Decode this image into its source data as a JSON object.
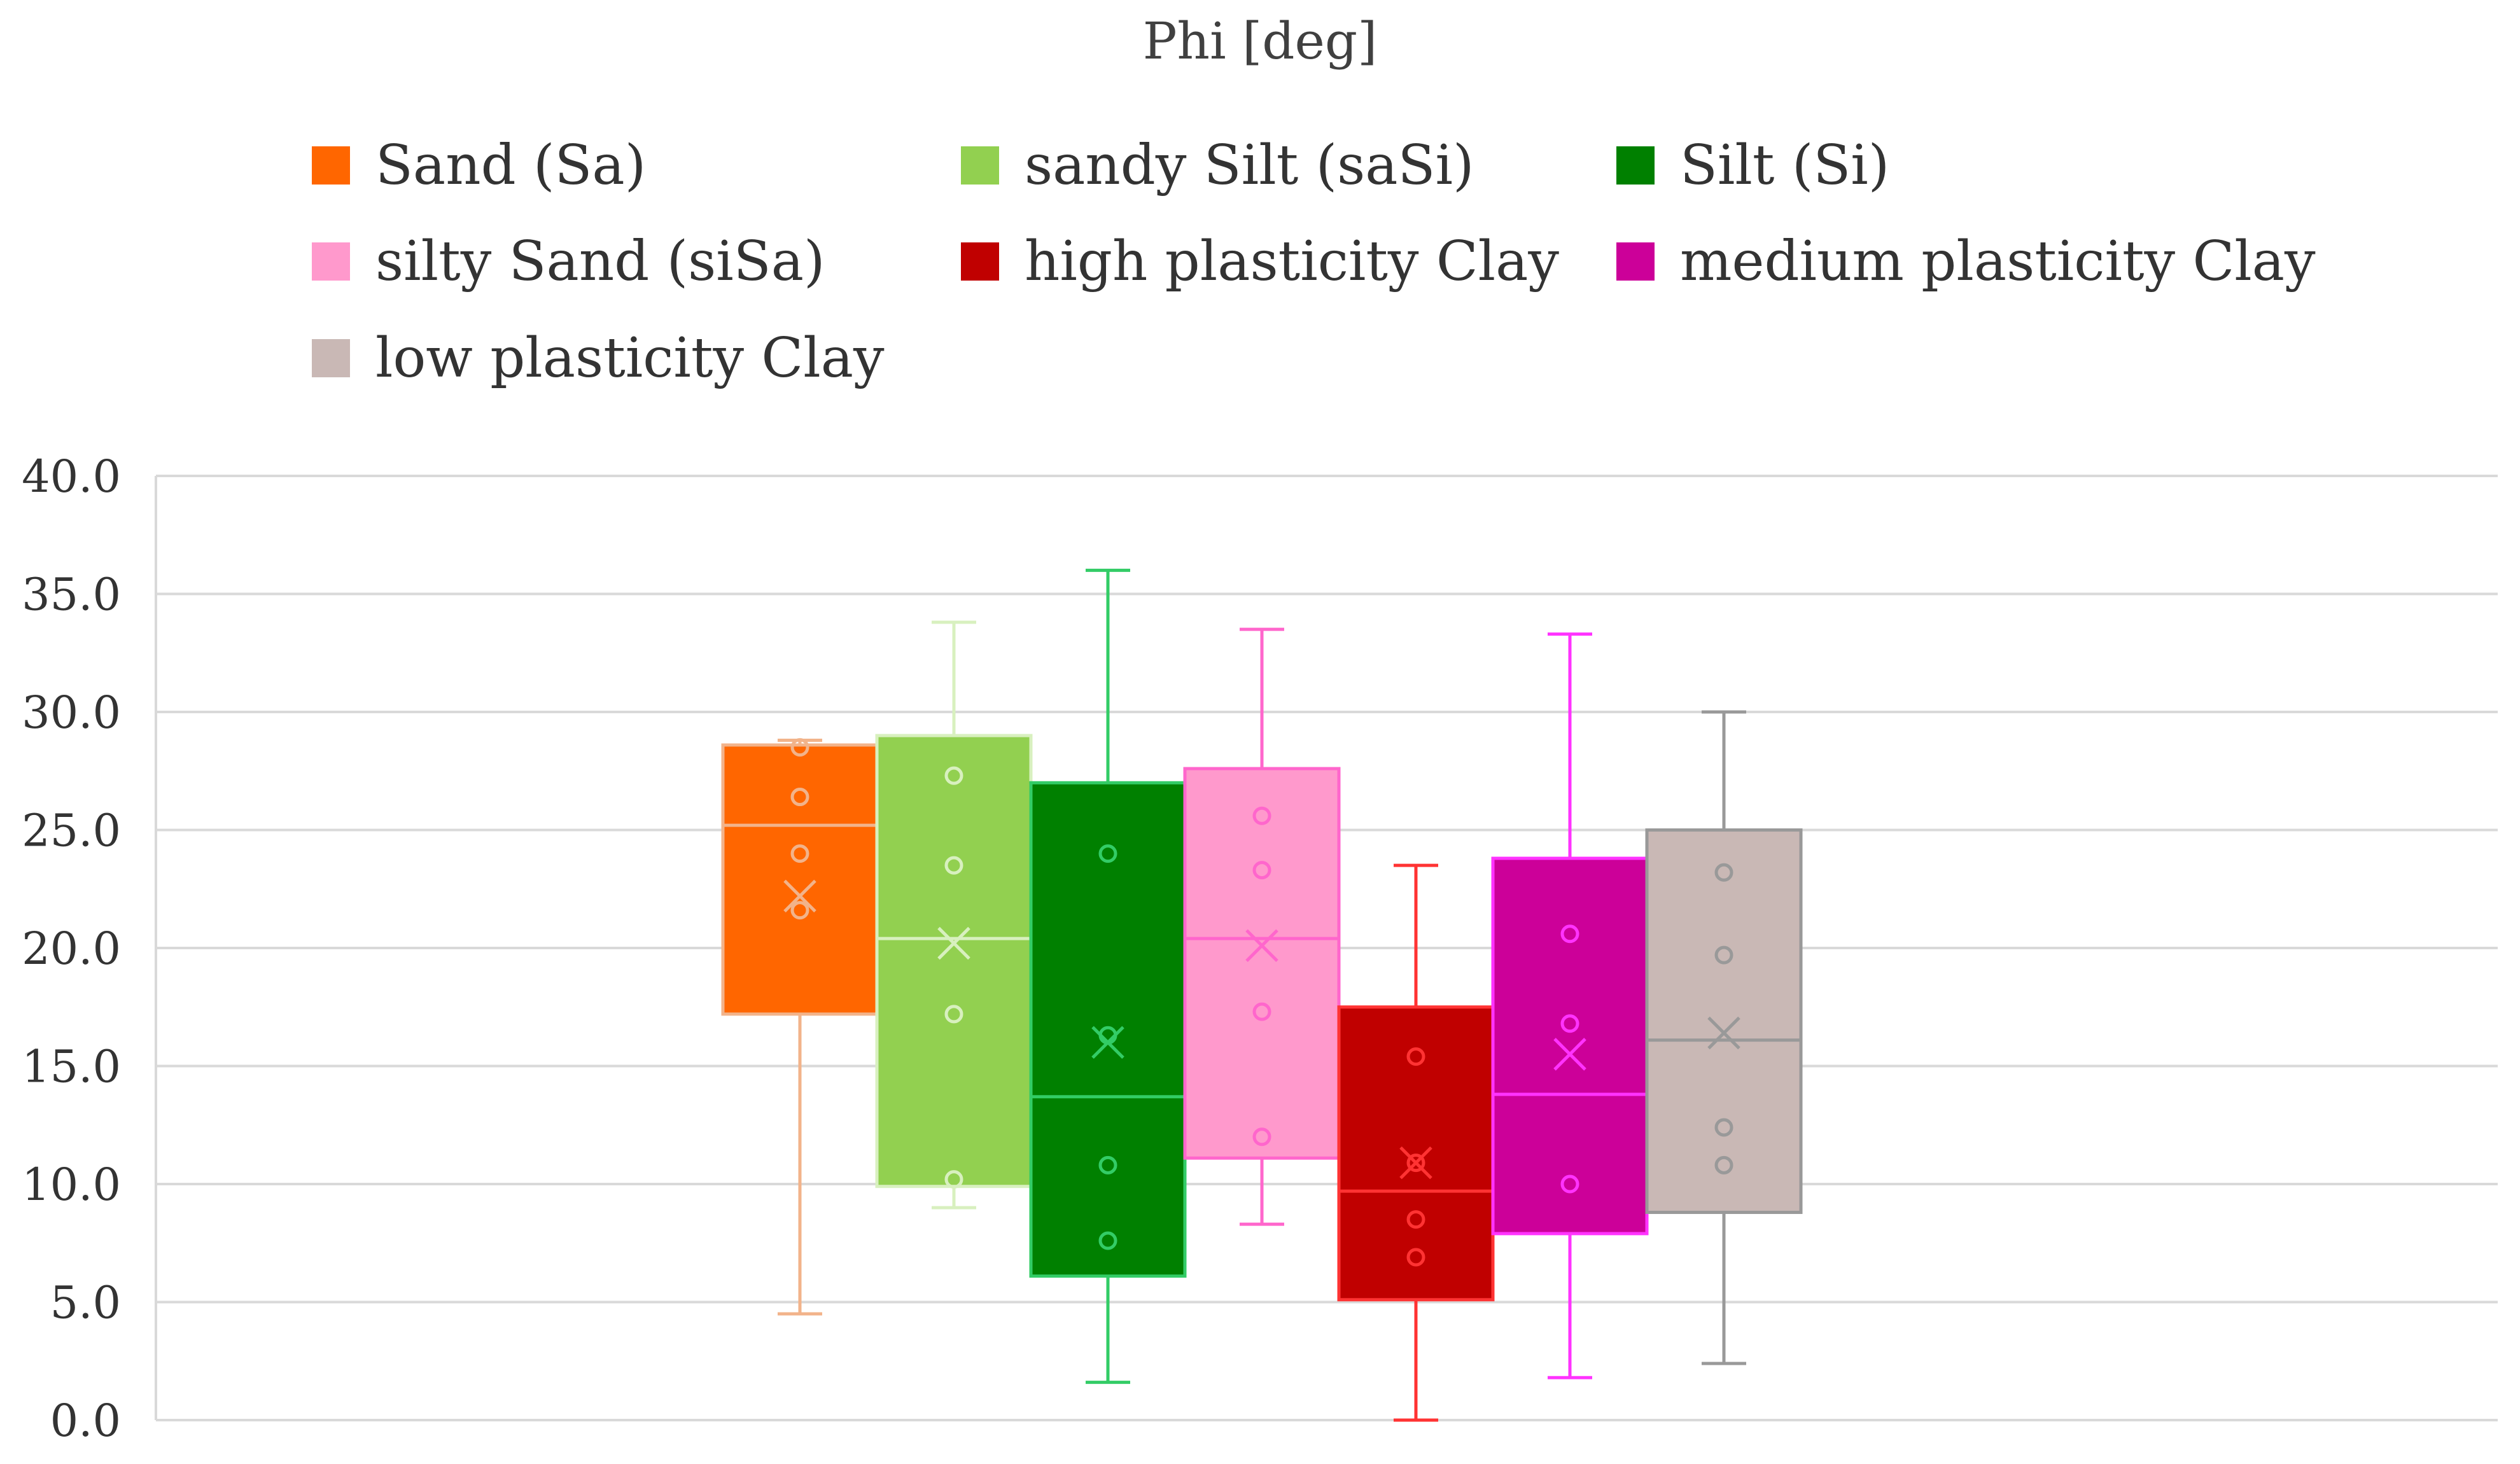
{
  "chart_data": {
    "type": "boxplot",
    "title": "Phi [deg]",
    "xlabel": "",
    "ylabel": "",
    "ylim": [
      0,
      40
    ],
    "yticks": [
      "0.0",
      "5.0",
      "10.0",
      "15.0",
      "20.0",
      "25.0",
      "30.0",
      "35.0",
      "40.0"
    ],
    "ytick_values": [
      0,
      5,
      10,
      15,
      20,
      25,
      30,
      35,
      40
    ],
    "grid": true,
    "legend_position": "top",
    "series": [
      {
        "name": "Sand (Sa)",
        "color": "#ff6600",
        "line_color": "#f2b38a",
        "min": 4.5,
        "q1": 17.2,
        "median": 25.2,
        "q3": 28.6,
        "max": 28.8,
        "mean": 22.2,
        "points": [
          28.5,
          26.4,
          24.0,
          21.6
        ]
      },
      {
        "name": "sandy Silt (saSi)",
        "color": "#92d050",
        "line_color": "#d8f0bf",
        "min": 9.0,
        "q1": 9.9,
        "median": 20.4,
        "q3": 29.0,
        "max": 33.8,
        "mean": 20.2,
        "points": [
          27.3,
          23.5,
          17.2,
          10.2
        ]
      },
      {
        "name": "Silt (Si)",
        "color": "#008000",
        "line_color": "#33cc66",
        "min": 1.6,
        "q1": 6.1,
        "median": 13.7,
        "q3": 27.0,
        "max": 36.0,
        "mean": 16.0,
        "points": [
          24.0,
          16.3,
          10.8,
          7.6
        ]
      },
      {
        "name": "silty Sand (siSa)",
        "color": "#ff99cc",
        "line_color": "#ff66cc",
        "min": 8.3,
        "q1": 11.1,
        "median": 20.4,
        "q3": 27.6,
        "max": 33.5,
        "mean": 20.1,
        "points": [
          25.6,
          23.3,
          17.3,
          12.0
        ]
      },
      {
        "name": "high plasticity Clay",
        "color": "#c00000",
        "line_color": "#ff3333",
        "min": 0.0,
        "q1": 5.1,
        "median": 9.7,
        "q3": 17.5,
        "max": 23.5,
        "mean": 10.9,
        "points": [
          15.4,
          10.9,
          8.5,
          6.9
        ]
      },
      {
        "name": "medium plasticity Clay",
        "color": "#cc0099",
        "line_color": "#ff33ff",
        "min": 1.8,
        "q1": 7.9,
        "median": 13.8,
        "q3": 23.8,
        "max": 33.3,
        "mean": 15.5,
        "points": [
          20.6,
          16.8,
          10.0
        ]
      },
      {
        "name": "low plasticity Clay",
        "color": "#c9b8b5",
        "line_color": "#999999",
        "min": 2.4,
        "q1": 8.8,
        "median": 16.1,
        "q3": 25.0,
        "max": 30.0,
        "mean": 16.4,
        "points": [
          23.2,
          19.7,
          12.4,
          10.8
        ]
      }
    ]
  }
}
